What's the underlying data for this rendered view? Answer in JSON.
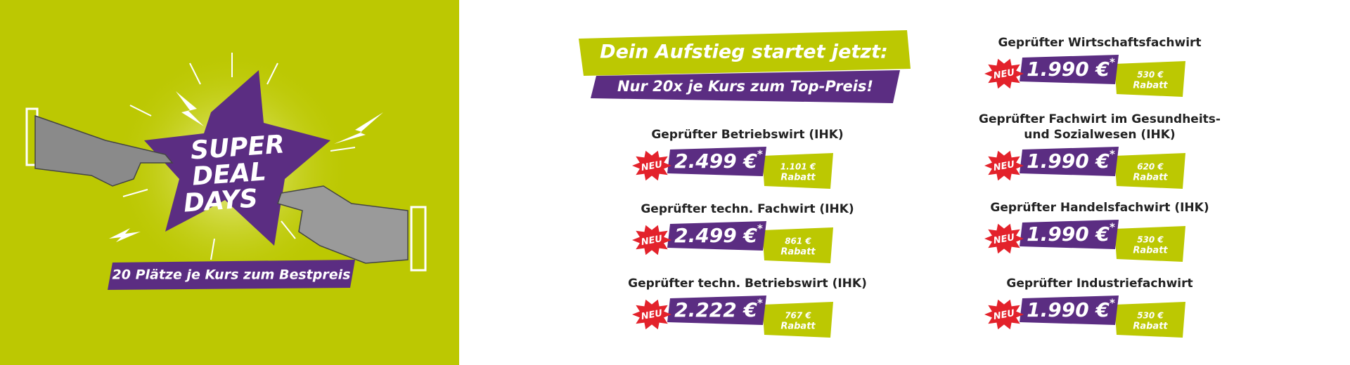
{
  "hero": {
    "title_lines": [
      "SUPER",
      "DEAL",
      "DAYS"
    ],
    "banner": "20 Plätze je Kurs zum Bestpreis"
  },
  "headline": "Dein Aufstieg startet jetzt:",
  "subheadline": "Nur 20x je Kurs zum Top-Preis!",
  "courses": [
    {
      "name_lines": [
        "Geprüfter Betriebswirt (IHK)"
      ],
      "badge": "NEU",
      "price": "2.499 €",
      "asterisk": "*",
      "discount": "1.101 €",
      "discount_label": "Rabatt"
    },
    {
      "name_lines": [
        "Geprüfter techn. Fachwirt (IHK)"
      ],
      "badge": "NEU",
      "price": "2.499 €",
      "asterisk": "*",
      "discount": "861 €",
      "discount_label": "Rabatt"
    },
    {
      "name_lines": [
        "Geprüfter techn. Betriebswirt (IHK)"
      ],
      "badge": "NEU",
      "price": "2.222 €",
      "asterisk": "*",
      "discount": "767 €",
      "discount_label": "Rabatt"
    },
    {
      "name_lines": [
        "Geprüfter Wirtschaftsfachwirt"
      ],
      "badge": "NEU",
      "price": "1.990 €",
      "asterisk": "*",
      "discount": "530 €",
      "discount_label": "Rabatt"
    },
    {
      "name_lines": [
        "Geprüfter Fachwirt im Gesundheits-",
        "und Sozialwesen (IHK)"
      ],
      "badge": "NEU",
      "price": "1.990 €",
      "asterisk": "*",
      "discount": "620 €",
      "discount_label": "Rabatt"
    },
    {
      "name_lines": [
        "Geprüfter Handelsfachwirt (IHK)"
      ],
      "badge": "NEU",
      "price": "1.990 €",
      "asterisk": "*",
      "discount": "530 €",
      "discount_label": "Rabatt"
    },
    {
      "name_lines": [
        "Geprüfter Industriefachwirt"
      ],
      "badge": "NEU",
      "price": "1.990 €",
      "asterisk": "*",
      "discount": "530 €",
      "discount_label": "Rabatt"
    }
  ]
}
